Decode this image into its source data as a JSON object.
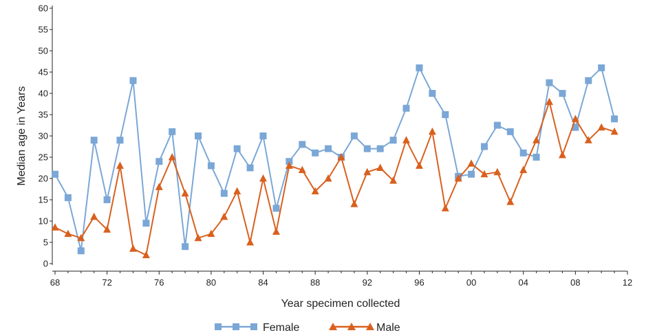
{
  "chart_data": {
    "type": "line",
    "xlabel": "Year specimen collected",
    "ylabel": "Median age in Years",
    "x_ticks": [
      "68",
      "72",
      "76",
      "80",
      "84",
      "88",
      "92",
      "96",
      "00",
      "04",
      "08",
      "12"
    ],
    "y_ticks": [
      "0",
      "5",
      "10",
      "15",
      "20",
      "25",
      "30",
      "35",
      "40",
      "45",
      "50",
      "55",
      "60"
    ],
    "ylim": [
      0,
      60
    ],
    "grid": false,
    "legend_position": "bottom-center",
    "x": [
      1968,
      1969,
      1970,
      1971,
      1972,
      1973,
      1974,
      1975,
      1976,
      1977,
      1978,
      1979,
      1980,
      1981,
      1982,
      1983,
      1984,
      1985,
      1986,
      1987,
      1988,
      1989,
      1990,
      1991,
      1992,
      1993,
      1994,
      1995,
      1996,
      1997,
      1998,
      1999,
      2000,
      2001,
      2002,
      2003,
      2004,
      2005,
      2006,
      2007,
      2008,
      2009,
      2010,
      2011
    ],
    "series": [
      {
        "name": "Female",
        "color": "#7aa7d6",
        "marker": "square",
        "values": [
          21,
          15.5,
          3,
          29,
          15,
          29,
          43,
          9.5,
          24,
          31,
          4,
          30,
          23,
          16.5,
          27,
          22.5,
          30,
          13,
          24,
          28,
          26,
          27,
          25,
          30,
          27,
          27,
          29,
          36.5,
          46,
          40,
          35,
          20.5,
          21,
          27.5,
          32.5,
          31,
          26,
          25,
          42.5,
          40,
          32,
          43,
          46,
          34
        ]
      },
      {
        "name": "Male",
        "color": "#d9601e",
        "marker": "triangle",
        "values": [
          8.5,
          7,
          6,
          11,
          8,
          23,
          3.5,
          2,
          18,
          25,
          16.5,
          6,
          7,
          11,
          17,
          5,
          20,
          7.5,
          23,
          22,
          17,
          20,
          25,
          14,
          21.5,
          22.5,
          19.5,
          29,
          23,
          31,
          13,
          20,
          23.5,
          21,
          21.5,
          14.5,
          22,
          29,
          38,
          25.5,
          34,
          29,
          32,
          31
        ]
      }
    ]
  }
}
